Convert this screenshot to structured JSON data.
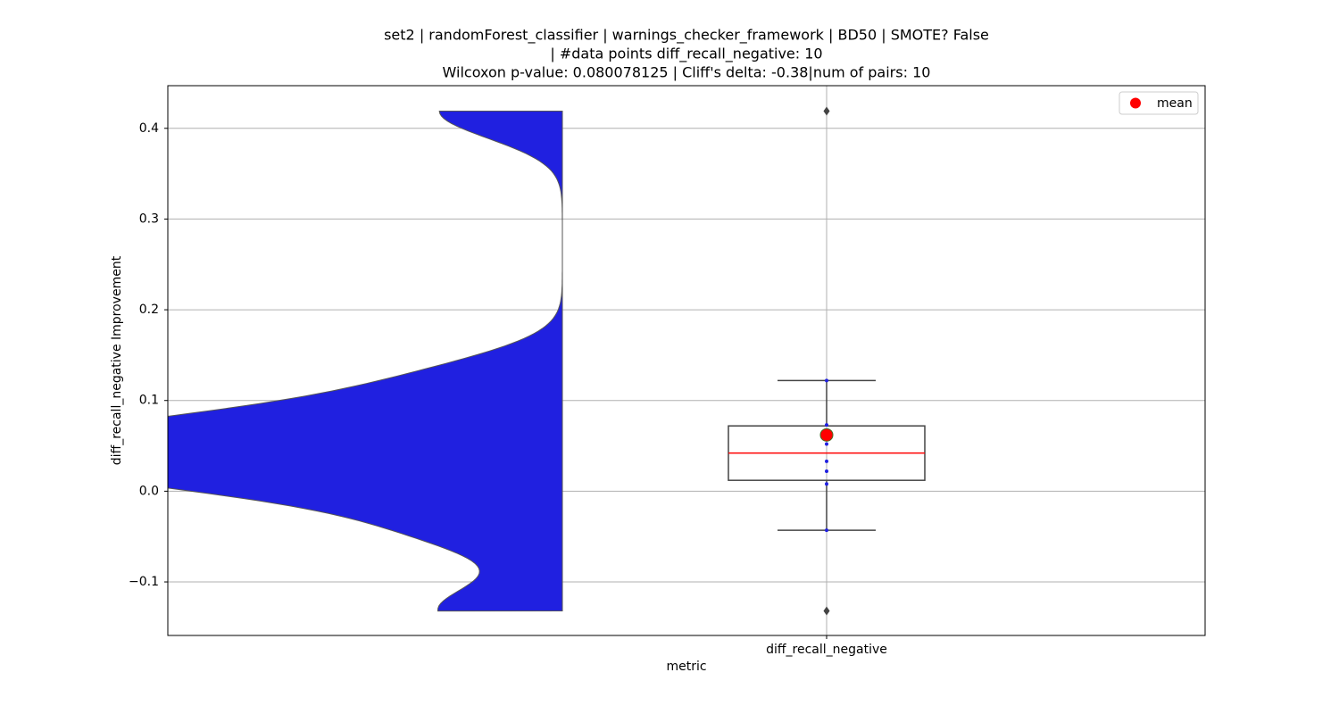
{
  "chart_data": {
    "type": "box",
    "title": [
      "set2 | randomForest_classifier | warnings_checker_framework | BD50 | SMOTE? False",
      "| #data points diff_recall_negative: 10",
      "Wilcoxon p-value: 0.080078125 | Cliff's delta: -0.38|num of pairs: 10"
    ],
    "xlabel": "metric",
    "ylabel": "diff_recall_negative Improvement",
    "categories": [
      "diff_recall_negative"
    ],
    "values": [
      0.419,
      0.122,
      0.073,
      0.063,
      0.052,
      0.033,
      0.022,
      0.008,
      -0.043,
      -0.132
    ],
    "color": "#2020e0",
    "box": {
      "q1": 0.012,
      "median": 0.042,
      "q3": 0.072,
      "whislo": -0.043,
      "whishi": 0.122,
      "mean": 0.062
    },
    "median_color": "#ff0000",
    "legend": {
      "label": "mean",
      "color": "#ff0000",
      "loc": "upper right"
    },
    "ylim": [
      -0.159,
      0.447
    ],
    "yticks": [
      {
        "value": -0.1,
        "label": "−0.1"
      },
      {
        "value": 0,
        "label": "0.0"
      },
      0.1,
      0.2,
      0.3,
      0.4
    ],
    "grid": true
  }
}
